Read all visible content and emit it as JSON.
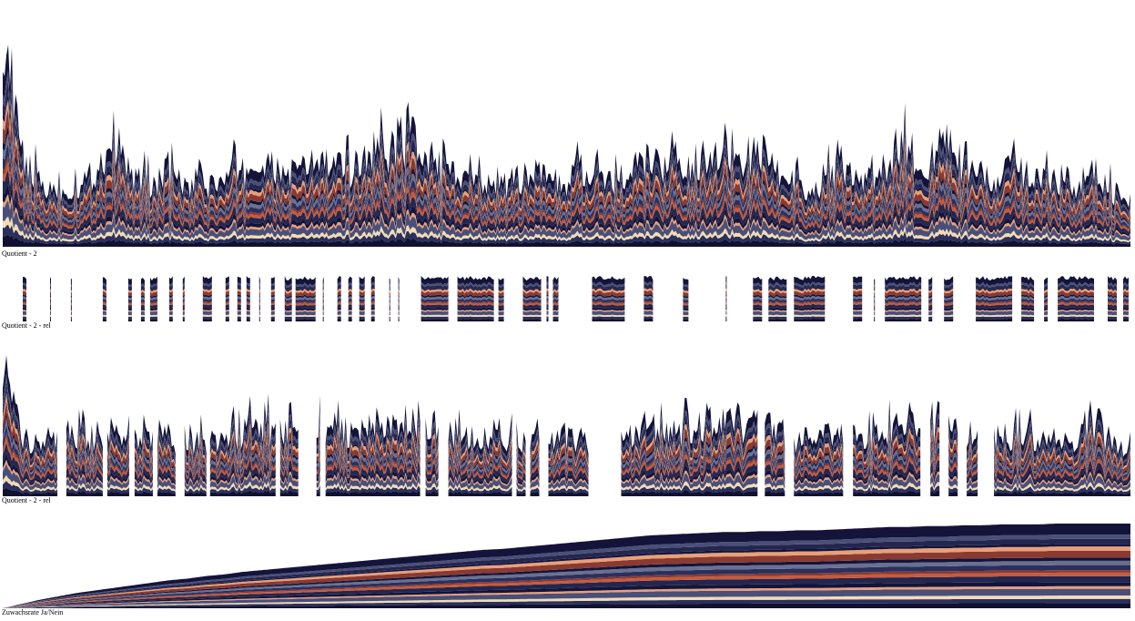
{
  "chart_data": [
    {
      "type": "area",
      "label": "Quotient - 2",
      "x_range": [
        0,
        1240
      ],
      "envelope": [
        0.95,
        0.35,
        0.25,
        0.22,
        0.24,
        0.3,
        0.45,
        0.28,
        0.25,
        0.3,
        0.22,
        0.24,
        0.27,
        0.3,
        0.33,
        0.3,
        0.3,
        0.35,
        0.32,
        0.3,
        0.4,
        0.38,
        0.42,
        0.3,
        0.3,
        0.25,
        0.28,
        0.25,
        0.27,
        0.3,
        0.25,
        0.28,
        0.27,
        0.25,
        0.3,
        0.35,
        0.32,
        0.3,
        0.38,
        0.42,
        0.35,
        0.4,
        0.3,
        0.25,
        0.22,
        0.3,
        0.28,
        0.25,
        0.3,
        0.4,
        0.3,
        0.35,
        0.3,
        0.28,
        0.25,
        0.3,
        0.28,
        0.28,
        0.25,
        0.3,
        0.22,
        0.2
      ],
      "present": [
        [
          0,
          1240
        ]
      ]
    },
    {
      "type": "area",
      "label": "Quotient - 2 - rel",
      "x_range": [
        0,
        1240
      ],
      "envelope": [
        1,
        1,
        1,
        1,
        1,
        1,
        1,
        1,
        1,
        1,
        1,
        1,
        1,
        1,
        1,
        1,
        1,
        1,
        1,
        1,
        1,
        1,
        1,
        1,
        1,
        1,
        1,
        1,
        1,
        1,
        1,
        1,
        1,
        1,
        1,
        1,
        1,
        1,
        1,
        1,
        1,
        1,
        1,
        1,
        1,
        1,
        1,
        1,
        1,
        1,
        1,
        1,
        1,
        1,
        1,
        1,
        1,
        1,
        1,
        1,
        1,
        1
      ],
      "present": [
        [
          22,
          26
        ],
        [
          52,
          53
        ],
        [
          75,
          76
        ],
        [
          110,
          115
        ],
        [
          138,
          143
        ],
        [
          152,
          157
        ],
        [
          162,
          170
        ],
        [
          183,
          188
        ],
        [
          198,
          201
        ],
        [
          220,
          230
        ],
        [
          245,
          250
        ],
        [
          258,
          262
        ],
        [
          268,
          272
        ],
        [
          282,
          283
        ],
        [
          295,
          300
        ],
        [
          310,
          318
        ],
        [
          322,
          345
        ],
        [
          352,
          353
        ],
        [
          368,
          372
        ],
        [
          380,
          385
        ],
        [
          392,
          398
        ],
        [
          405,
          410
        ],
        [
          425,
          426
        ],
        [
          435,
          436
        ],
        [
          460,
          490
        ],
        [
          500,
          540
        ],
        [
          545,
          552
        ],
        [
          572,
          592
        ],
        [
          598,
          600
        ],
        [
          605,
          612
        ],
        [
          648,
          685
        ],
        [
          705,
          715
        ],
        [
          748,
          755
        ],
        [
          795,
          796
        ],
        [
          825,
          835
        ],
        [
          842,
          862
        ],
        [
          870,
          905
        ],
        [
          935,
          945
        ],
        [
          958,
          959
        ],
        [
          970,
          1010
        ],
        [
          1018,
          1022
        ],
        [
          1035,
          1045
        ],
        [
          1070,
          1110
        ],
        [
          1120,
          1135
        ],
        [
          1145,
          1150
        ],
        [
          1160,
          1200
        ],
        [
          1215,
          1225
        ],
        [
          1232,
          1238
        ]
      ]
    },
    {
      "type": "area",
      "label": "Quotient - 2 - rel",
      "x_range": [
        0,
        1240
      ],
      "envelope": [
        1.0,
        0.4,
        0.4,
        0.38,
        0.4,
        0.42,
        0.5,
        0.4,
        0.38,
        0.42,
        0.36,
        0.38,
        0.4,
        0.45,
        0.48,
        0.45,
        0.45,
        0.5,
        0.46,
        0.45,
        0.55,
        0.5,
        0.55,
        0.45,
        0.44,
        0.4,
        0.42,
        0.4,
        0.4,
        0.45,
        0.38,
        0.4,
        0.4,
        0.38,
        0.45,
        0.5,
        0.46,
        0.45,
        0.5,
        0.55,
        0.48,
        0.52,
        0.45,
        0.4,
        0.38,
        0.45,
        0.42,
        0.4,
        0.45,
        0.55,
        0.45,
        0.5,
        0.45,
        0.42,
        0.4,
        0.45,
        0.42,
        0.42,
        0.4,
        0.45,
        0.38,
        0.36
      ],
      "present": [
        [
          0,
          60
        ],
        [
          70,
          110
        ],
        [
          115,
          140
        ],
        [
          145,
          165
        ],
        [
          170,
          190
        ],
        [
          200,
          225
        ],
        [
          228,
          300
        ],
        [
          305,
          325
        ],
        [
          345,
          350
        ],
        [
          355,
          460
        ],
        [
          465,
          480
        ],
        [
          490,
          560
        ],
        [
          565,
          575
        ],
        [
          580,
          590
        ],
        [
          600,
          645
        ],
        [
          680,
          830
        ],
        [
          838,
          860
        ],
        [
          870,
          925
        ],
        [
          935,
          1010
        ],
        [
          1020,
          1030
        ],
        [
          1040,
          1050
        ],
        [
          1060,
          1072
        ],
        [
          1090,
          1240
        ]
      ]
    },
    {
      "type": "area",
      "label": "Zuwachsrate Ja/Nein",
      "x_range": [
        0,
        1240
      ],
      "envelope": [
        0.0,
        0.05,
        0.1,
        0.14,
        0.18,
        0.21,
        0.24,
        0.27,
        0.3,
        0.33,
        0.35,
        0.38,
        0.4,
        0.43,
        0.45,
        0.47,
        0.49,
        0.51,
        0.53,
        0.55,
        0.57,
        0.59,
        0.61,
        0.63,
        0.65,
        0.67,
        0.69,
        0.7,
        0.72,
        0.74,
        0.76,
        0.78,
        0.8,
        0.82,
        0.84,
        0.86,
        0.87,
        0.88,
        0.89,
        0.9,
        0.9,
        0.91,
        0.91,
        0.92,
        0.92,
        0.93,
        0.94,
        0.95,
        0.96,
        0.96,
        0.97,
        0.97,
        0.98,
        0.98,
        0.99,
        0.99,
        0.99,
        1.0,
        1.0,
        1.0,
        1.0,
        1.0
      ],
      "present": [
        [
          0,
          1240
        ]
      ]
    }
  ],
  "palette": [
    "#14143a",
    "#2a2f5c",
    "#4a4f78",
    "#8a3a30",
    "#c85a3c",
    "#e8a07a",
    "#f2dcb4",
    "#6a7090",
    "#23264e",
    "#101030"
  ]
}
